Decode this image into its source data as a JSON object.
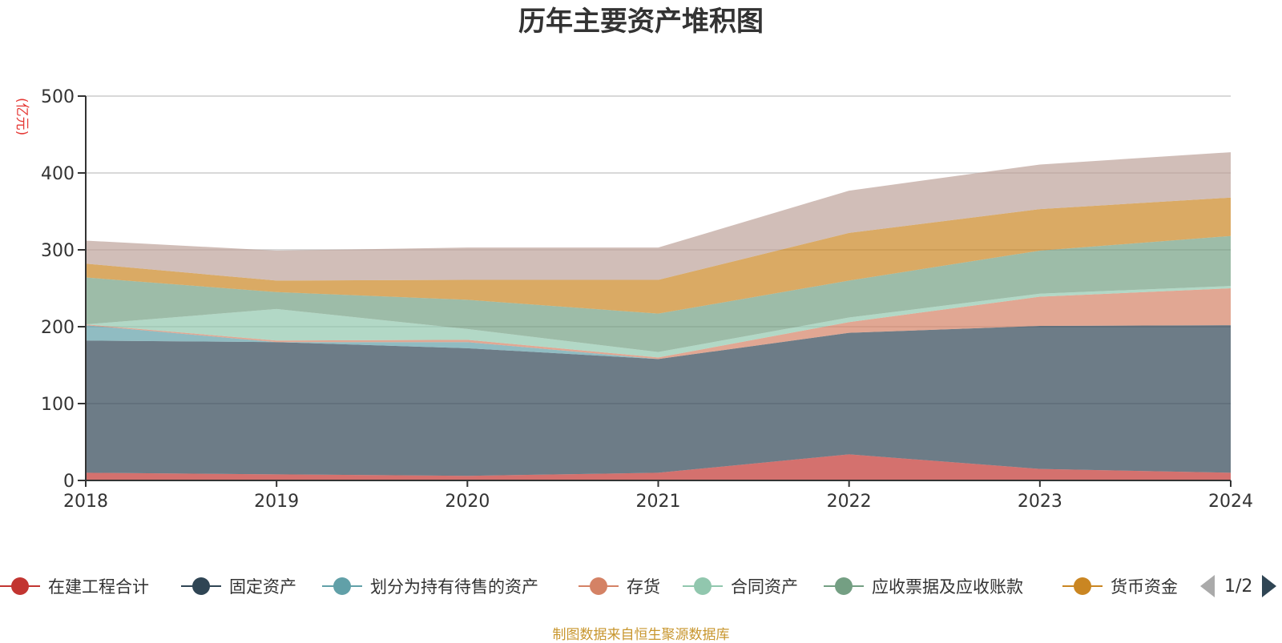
{
  "chart_data": {
    "type": "area",
    "title": "历年主要资产堆积图",
    "ylabel": "(亿元)",
    "xlabel": "",
    "categories": [
      "2018",
      "2019",
      "2020",
      "2021",
      "2022",
      "2023",
      "2024"
    ],
    "ylim": [
      0,
      500
    ],
    "yticks": [
      "0",
      "100",
      "200",
      "300",
      "400",
      "500"
    ],
    "grid": true,
    "stacked": true,
    "legend_position": "bottom",
    "series": [
      {
        "name": "在建工程合计",
        "values": [
          10,
          8,
          6,
          10,
          34,
          15,
          10
        ],
        "color": "#c23531"
      },
      {
        "name": "固定资产",
        "values": [
          172,
          172,
          166,
          148,
          158,
          186,
          192
        ],
        "color": "#2f4554"
      },
      {
        "name": "划分为持有待售的资产",
        "values": [
          20,
          0,
          8,
          0,
          0,
          0,
          0
        ],
        "color": "#61a0a8"
      },
      {
        "name": "存货",
        "values": [
          1,
          2,
          3,
          2,
          14,
          38,
          48
        ],
        "color": "#d48265"
      },
      {
        "name": "合同资产",
        "values": [
          0,
          41,
          14,
          7,
          6,
          4,
          3
        ],
        "color": "#91c7ae"
      },
      {
        "name": "应收票据及应收账款",
        "values": [
          61,
          22,
          38,
          50,
          48,
          56,
          65
        ],
        "color": "#749f83"
      },
      {
        "name": "货币资金",
        "values": [
          18,
          15,
          26,
          44,
          62,
          54,
          50
        ],
        "color": "#ca8622"
      },
      {
        "name": "",
        "values": [
          30,
          39,
          42,
          42,
          55,
          58,
          59
        ],
        "color": "#bda29a"
      }
    ],
    "legend_page": "1/2",
    "source": "制图数据来自恒生聚源数据库"
  }
}
